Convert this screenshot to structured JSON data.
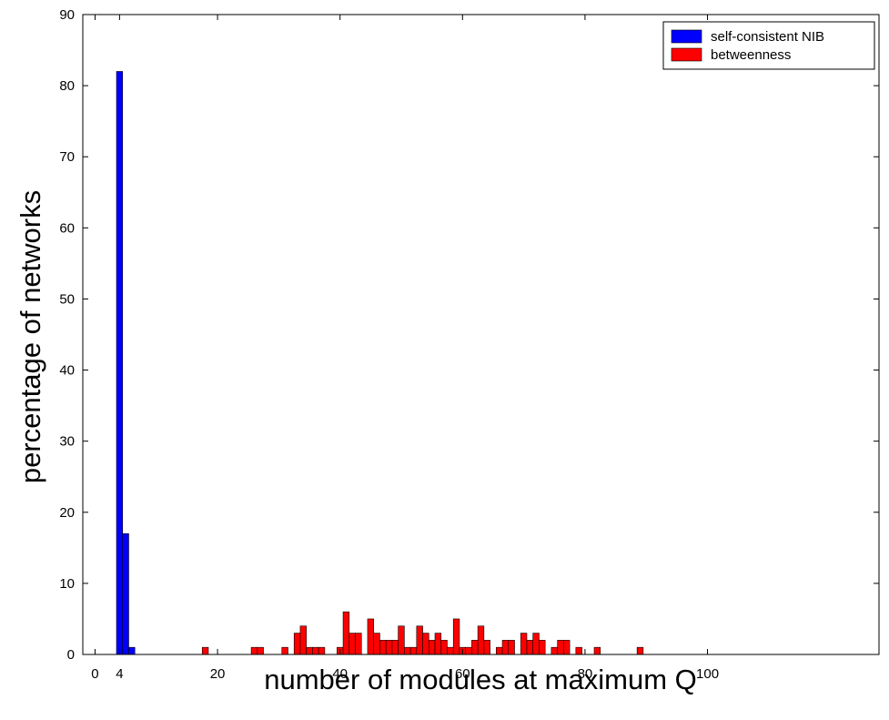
{
  "chart_data": {
    "type": "bar",
    "title": "",
    "xlabel": "number of modules at maximum Q",
    "ylabel": "percentage of networks",
    "xlim": [
      -2,
      128
    ],
    "ylim": [
      0,
      90
    ],
    "bin_width": 1,
    "x_ticks": [
      0,
      4,
      20,
      40,
      60,
      80,
      100
    ],
    "y_ticks": [
      0,
      10,
      20,
      30,
      40,
      50,
      60,
      70,
      80,
      90
    ],
    "legend_position": "top-right",
    "grid": false,
    "series": [
      {
        "name": "self-consistent NIB",
        "color": "#0000ff",
        "points": [
          [
            4,
            82
          ],
          [
            5,
            17
          ],
          [
            6,
            1
          ]
        ]
      },
      {
        "name": "betweenness",
        "color": "#ff0000",
        "points": [
          [
            18,
            1
          ],
          [
            26,
            1
          ],
          [
            27,
            1
          ],
          [
            31,
            1
          ],
          [
            33,
            3
          ],
          [
            34,
            4
          ],
          [
            35,
            1
          ],
          [
            36,
            1
          ],
          [
            37,
            1
          ],
          [
            40,
            1
          ],
          [
            41,
            6
          ],
          [
            42,
            3
          ],
          [
            43,
            3
          ],
          [
            45,
            5
          ],
          [
            46,
            3
          ],
          [
            47,
            2
          ],
          [
            48,
            2
          ],
          [
            49,
            2
          ],
          [
            50,
            4
          ],
          [
            51,
            1
          ],
          [
            52,
            1
          ],
          [
            53,
            4
          ],
          [
            54,
            3
          ],
          [
            55,
            2
          ],
          [
            56,
            3
          ],
          [
            57,
            2
          ],
          [
            58,
            1
          ],
          [
            59,
            5
          ],
          [
            60,
            1
          ],
          [
            61,
            1
          ],
          [
            62,
            2
          ],
          [
            63,
            4
          ],
          [
            64,
            2
          ],
          [
            66,
            1
          ],
          [
            67,
            2
          ],
          [
            68,
            2
          ],
          [
            70,
            3
          ],
          [
            71,
            2
          ],
          [
            72,
            3
          ],
          [
            73,
            2
          ],
          [
            75,
            1
          ],
          [
            76,
            2
          ],
          [
            77,
            2
          ],
          [
            79,
            1
          ],
          [
            82,
            1
          ],
          [
            89,
            1
          ]
        ]
      }
    ]
  }
}
